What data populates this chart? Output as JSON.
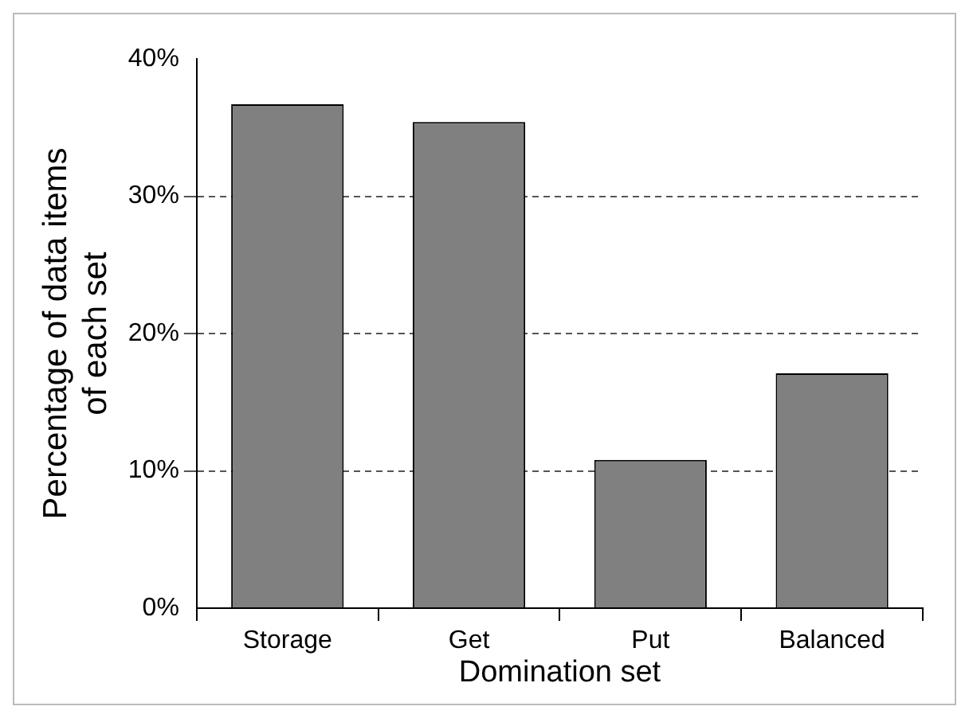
{
  "chart_data": {
    "type": "bar",
    "xlabel": "Domination set",
    "ylabel": "Percentage of data items of each set",
    "categories": [
      "Storage",
      "Get",
      "Put",
      "Balanced"
    ],
    "values": [
      36.7,
      35.4,
      10.8,
      17.1
    ],
    "color": "#808080",
    "ylim": [
      0,
      40
    ],
    "yticks": [
      {
        "value": 0,
        "label": "0%"
      },
      {
        "value": 10,
        "label": "10%"
      },
      {
        "value": 20,
        "label": "20%"
      },
      {
        "value": 30,
        "label": "30%"
      },
      {
        "value": 40,
        "label": "40%"
      }
    ],
    "grid": "y"
  }
}
